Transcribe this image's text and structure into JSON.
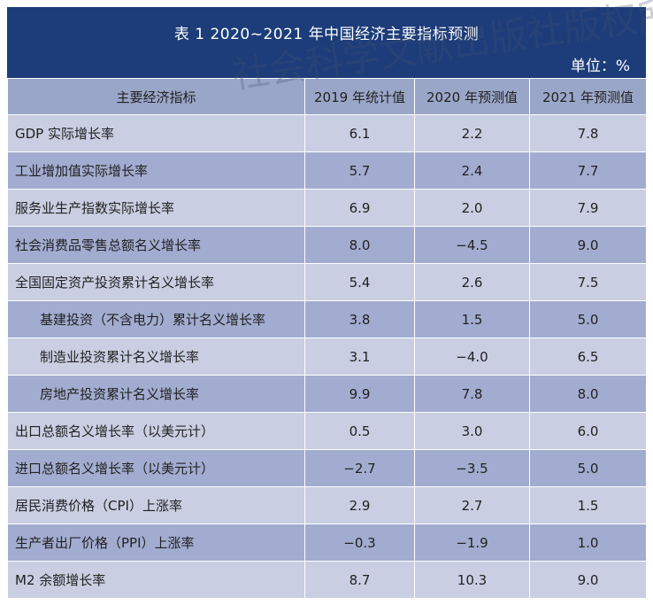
{
  "title": "表 1   2020~2021 年中国经济主要指标预测",
  "unit": "单位：%",
  "watermark": "社会科学文献出版社版权所有",
  "headers": [
    "主要经济指标",
    "2019 年统计值",
    "2020 年预测值",
    "2021 年预测值"
  ],
  "rows": [
    {
      "label": "GDP 实际增长率",
      "v2019": "6.1",
      "v2020": "2.2",
      "v2021": "7.8"
    },
    {
      "label": "工业增加值实际增长率",
      "v2019": "5.7",
      "v2020": "2.4",
      "v2021": "7.7"
    },
    {
      "label": "服务业生产指数实际增长率",
      "v2019": "6.9",
      "v2020": "2.0",
      "v2021": "7.9"
    },
    {
      "label": "社会消费品零售总额名义增长率",
      "v2019": "8.0",
      "v2020": "−4.5",
      "v2021": "9.0"
    },
    {
      "label": "全国固定资产投资累计名义增长率",
      "v2019": "5.4",
      "v2020": "2.6",
      "v2021": "7.5"
    },
    {
      "label": "基建投资（不含电力）累计名义增长率",
      "v2019": "3.8",
      "v2020": "1.5",
      "v2021": "5.0"
    },
    {
      "label": "制造业投资累计名义增长率",
      "v2019": "3.1",
      "v2020": "−4.0",
      "v2021": "6.5"
    },
    {
      "label": "房地产投资累计名义增长率",
      "v2019": "9.9",
      "v2020": "7.8",
      "v2021": "8.0"
    },
    {
      "label": "出口总额名义增长率（以美元计）",
      "v2019": "0.5",
      "v2020": "3.0",
      "v2021": "6.0"
    },
    {
      "label": "进口总额名义增长率（以美元计）",
      "v2019": "−2.7",
      "v2020": "−3.5",
      "v2021": "5.0"
    },
    {
      "label": "居民消费价格（CPI）上涨率",
      "v2019": "2.9",
      "v2020": "2.7",
      "v2021": "1.5"
    },
    {
      "label": "生产者出厂价格（PPI）上涨率",
      "v2019": "−0.3",
      "v2020": "−1.9",
      "v2021": "1.0"
    },
    {
      "label": "M2 余额增长率",
      "v2019": "8.7",
      "v2020": "10.3",
      "v2021": "9.0"
    }
  ],
  "colors": {
    "title_bg": "#1c3d7a",
    "header_bg": "#9aa6c8",
    "row_light": "#c9cee2",
    "row_dark": "#a2acd0"
  }
}
